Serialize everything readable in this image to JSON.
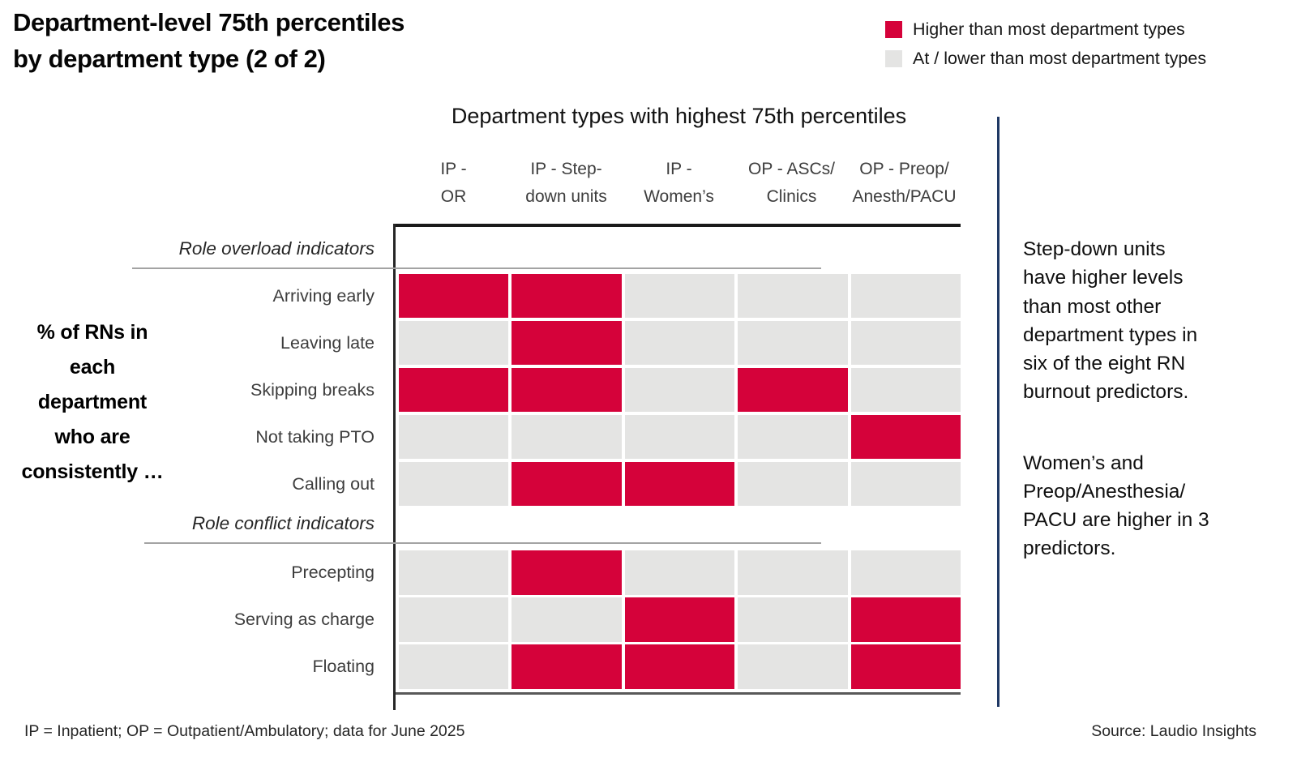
{
  "title": "Department-level 75th percentiles\nby department type (2 of 2)",
  "legend": [
    {
      "label": "Higher than most department types",
      "color": "#D5023A"
    },
    {
      "label": "At / lower than most department types",
      "color": "#E4E4E3"
    }
  ],
  "chart_data": {
    "type": "heatmap",
    "title": "Department types with highest 75th percentiles",
    "row_axis_label": "% of RNs in\neach\ndepartment\nwho are\nconsistently …",
    "columns": [
      "IP - OR",
      "IP - Step-down units",
      "IP - Women’s",
      "OP - ASCs/Clinics",
      "OP - Preop/Anesth/PACU"
    ],
    "column_labels_two_line": [
      "IP -\nOR",
      "IP - Step-\ndown units",
      "IP -\nWomen’s",
      "OP - ASCs/\nClinics",
      "OP - Preop/\nAnesth/PACU"
    ],
    "value_legend": {
      "1": "Higher than most department types",
      "0": "At / lower than most department types"
    },
    "cell_colors": {
      "high": "#D5023A",
      "low": "#E4E4E3"
    },
    "sections": [
      {
        "label": "Role overload indicators",
        "rows": [
          {
            "label": "Arriving early",
            "values": [
              1,
              1,
              0,
              0,
              0
            ]
          },
          {
            "label": "Leaving late",
            "values": [
              0,
              1,
              0,
              0,
              0
            ]
          },
          {
            "label": "Skipping breaks",
            "values": [
              1,
              1,
              0,
              1,
              0
            ]
          },
          {
            "label": "Not taking PTO",
            "values": [
              0,
              0,
              0,
              0,
              1
            ]
          },
          {
            "label": "Calling out",
            "values": [
              0,
              1,
              1,
              0,
              0
            ]
          }
        ]
      },
      {
        "label": "Role conflict indicators",
        "rows": [
          {
            "label": "Precepting",
            "values": [
              0,
              1,
              0,
              0,
              0
            ]
          },
          {
            "label": "Serving as charge",
            "values": [
              0,
              0,
              1,
              0,
              1
            ]
          },
          {
            "label": "Floating",
            "values": [
              0,
              1,
              1,
              0,
              1
            ]
          }
        ]
      }
    ]
  },
  "annotation": {
    "para1": "Step-down units\nhave higher levels\nthan most other\ndepartment types in\nsix of the eight RN\nburnout predictors.",
    "para2": "Women’s and\nPreop/Anesthesia/\nPACU are higher in 3\npredictors."
  },
  "footer": {
    "left": "IP = Inpatient; OP = Outpatient/Ambulatory; data for June 2025",
    "right": "Source: Laudio Insights"
  }
}
